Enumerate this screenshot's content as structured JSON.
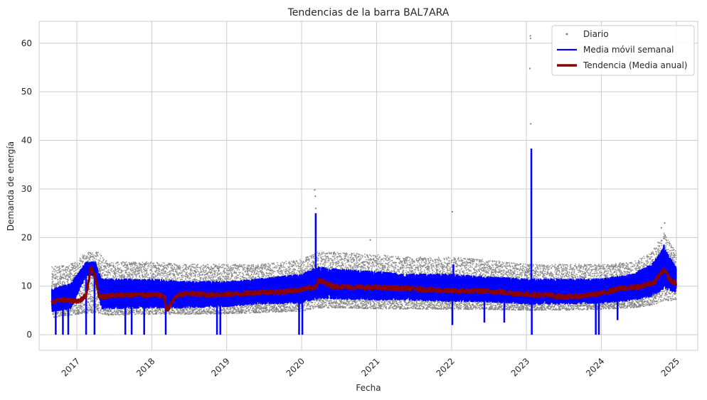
{
  "chart_data": {
    "type": "line",
    "title": "Tendencias de la barra BAL7ARA",
    "xlabel": "Fecha",
    "ylabel": "Demanda de energía",
    "xlim": [
      "2016-07-01",
      "2025-04-15"
    ],
    "ylim": [
      -3.2,
      64.5
    ],
    "x_ticks": [
      "2017",
      "2018",
      "2019",
      "2020",
      "2021",
      "2022",
      "2023",
      "2024",
      "2025"
    ],
    "y_ticks": [
      0,
      10,
      20,
      30,
      40,
      50,
      60
    ],
    "grid": true,
    "legend_position": "top-right",
    "colors": {
      "diario": "#808080",
      "semanal": "#0000ff",
      "anual": "#8b0000"
    },
    "series": [
      {
        "name": "Diario",
        "style": "scatter",
        "band": {
          "x": [
            "2016-09-01",
            "2016-12-01",
            "2017-03-01",
            "2017-04-15",
            "2017-06-01",
            "2018-01-01",
            "2018-06-01",
            "2019-01-01",
            "2019-06-01",
            "2020-01-01",
            "2020-03-15",
            "2020-07-01",
            "2021-01-01",
            "2021-06-01",
            "2022-01-01",
            "2022-06-01",
            "2023-01-01",
            "2023-06-01",
            "2024-01-01",
            "2024-06-01",
            "2024-09-01",
            "2024-11-01",
            "2024-12-31"
          ],
          "low": [
            3.5,
            4.0,
            4.5,
            4.5,
            4.0,
            4.2,
            4.2,
            4.3,
            4.5,
            4.8,
            5.5,
            5.5,
            5.3,
            5.3,
            5.2,
            5.2,
            5.0,
            5.0,
            5.2,
            5.5,
            6.0,
            7.0,
            7.0
          ],
          "high": [
            14.0,
            14.5,
            17.5,
            17.0,
            15.0,
            15.0,
            14.5,
            14.5,
            14.5,
            15.5,
            17.0,
            17.0,
            16.5,
            16.0,
            16.0,
            15.5,
            14.5,
            14.5,
            14.5,
            15.0,
            17.0,
            21.0,
            17.0
          ]
        },
        "outliers": [
          {
            "x": "2020-03-05",
            "y": 29.8
          },
          {
            "x": "2020-03-08",
            "y": 28.5
          },
          {
            "x": "2020-03-10",
            "y": 26.0
          },
          {
            "x": "2022-01-05",
            "y": 25.3
          },
          {
            "x": "2023-01-20",
            "y": 61.5
          },
          {
            "x": "2023-01-21",
            "y": 61.0
          },
          {
            "x": "2023-01-18",
            "y": 54.8
          },
          {
            "x": "2023-01-22",
            "y": 43.4
          },
          {
            "x": "2024-11-05",
            "y": 23.0
          },
          {
            "x": "2020-12-01",
            "y": 19.5
          },
          {
            "x": "2024-10-20",
            "y": 22.0
          }
        ]
      },
      {
        "name": "Media móvil semanal",
        "style": "line",
        "band": {
          "x": [
            "2016-09-01",
            "2016-12-01",
            "2017-02-15",
            "2017-04-01",
            "2017-05-01",
            "2018-01-01",
            "2018-06-01",
            "2019-01-01",
            "2019-06-01",
            "2020-01-01",
            "2020-03-15",
            "2020-07-01",
            "2021-01-01",
            "2021-06-01",
            "2022-01-01",
            "2022-06-01",
            "2023-01-01",
            "2023-06-01",
            "2024-01-01",
            "2024-06-01",
            "2024-09-01",
            "2024-11-01",
            "2024-12-31"
          ],
          "low": [
            4.5,
            5.0,
            12.0,
            12.0,
            5.0,
            5.2,
            5.2,
            5.5,
            6.0,
            6.2,
            7.0,
            7.0,
            6.8,
            6.8,
            6.5,
            6.5,
            6.0,
            6.0,
            6.2,
            6.8,
            7.5,
            9.0,
            8.5
          ],
          "high": [
            9.5,
            10.5,
            15.0,
            15.0,
            11.5,
            11.5,
            11.0,
            11.0,
            11.5,
            12.5,
            14.0,
            13.5,
            13.0,
            12.5,
            12.5,
            12.0,
            11.5,
            11.5,
            11.5,
            12.5,
            14.5,
            18.0,
            14.0
          ]
        },
        "spikes": [
          {
            "x": "2020-03-10",
            "y": 25.0
          },
          {
            "x": "2022-01-10",
            "y": 14.5
          },
          {
            "x": "2023-01-25",
            "y": 38.3
          },
          {
            "x": "2024-11-01",
            "y": 18.5
          }
        ],
        "dips": [
          {
            "x": "2016-09-20",
            "y": 0
          },
          {
            "x": "2016-10-25",
            "y": 0
          },
          {
            "x": "2016-11-20",
            "y": 0
          },
          {
            "x": "2017-02-15",
            "y": 0
          },
          {
            "x": "2017-03-28",
            "y": 0
          },
          {
            "x": "2017-08-25",
            "y": 0
          },
          {
            "x": "2017-09-25",
            "y": 0
          },
          {
            "x": "2017-11-25",
            "y": 0
          },
          {
            "x": "2018-03-10",
            "y": 0
          },
          {
            "x": "2018-11-15",
            "y": 0
          },
          {
            "x": "2018-12-01",
            "y": 0
          },
          {
            "x": "2019-12-20",
            "y": 0
          },
          {
            "x": "2020-01-05",
            "y": 0
          },
          {
            "x": "2023-01-27",
            "y": 0
          },
          {
            "x": "2023-12-05",
            "y": 0
          },
          {
            "x": "2023-12-20",
            "y": 0
          },
          {
            "x": "2022-01-05",
            "y": 2.0
          },
          {
            "x": "2022-06-10",
            "y": 2.5
          },
          {
            "x": "2022-09-15",
            "y": 2.5
          },
          {
            "x": "2024-03-20",
            "y": 3.0
          }
        ]
      },
      {
        "name": "Tendencia (Media anual)",
        "style": "line",
        "x": [
          "2016-09-01",
          "2016-10-15",
          "2016-12-01",
          "2017-01-15",
          "2017-02-15",
          "2017-03-10",
          "2017-04-01",
          "2017-04-20",
          "2017-06-01",
          "2017-09-01",
          "2018-01-01",
          "2018-03-01",
          "2018-03-15",
          "2018-05-01",
          "2018-07-01",
          "2018-10-01",
          "2019-01-01",
          "2019-04-01",
          "2019-07-01",
          "2019-10-01",
          "2020-01-01",
          "2020-03-10",
          "2020-03-25",
          "2020-06-01",
          "2020-09-01",
          "2021-01-01",
          "2021-06-01",
          "2022-01-01",
          "2022-06-01",
          "2022-09-01",
          "2023-01-01",
          "2023-04-01",
          "2023-07-01",
          "2023-10-01",
          "2024-01-01",
          "2024-04-01",
          "2024-07-01",
          "2024-09-15",
          "2024-11-01",
          "2024-12-01",
          "2024-12-31"
        ],
        "y": [
          6.6,
          7.2,
          7.0,
          7.0,
          8.0,
          13.8,
          12.0,
          7.8,
          8.0,
          8.2,
          8.2,
          8.0,
          5.0,
          8.0,
          8.5,
          8.2,
          8.3,
          8.5,
          8.8,
          8.8,
          9.3,
          9.8,
          11.2,
          10.0,
          9.8,
          9.7,
          9.5,
          9.0,
          9.0,
          8.8,
          8.3,
          8.2,
          7.8,
          8.0,
          8.5,
          9.5,
          9.8,
          10.8,
          13.5,
          11.2,
          10.5
        ]
      }
    ]
  }
}
